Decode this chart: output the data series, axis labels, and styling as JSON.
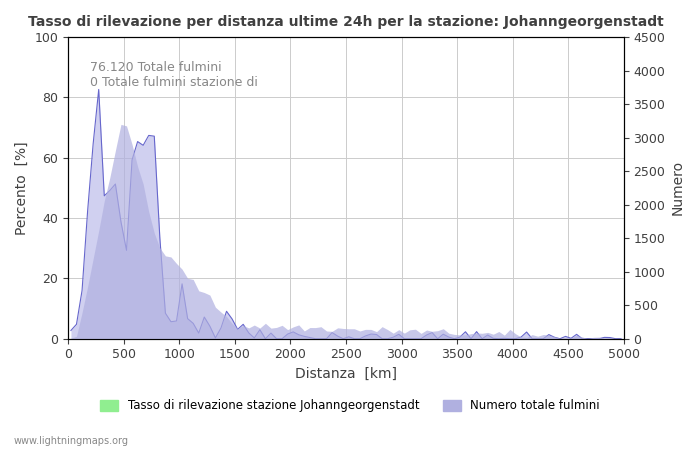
{
  "title": "Tasso di rilevazione per distanza ultime 24h per la stazione: Johanngeorgenstadt",
  "xlabel": "Distanza  [km]",
  "ylabel_left": "Percento  [%]",
  "ylabel_right": "Numero",
  "annotation_lines": [
    "76.120 Totale fulmini",
    "0 Totale fulmini stazione di"
  ],
  "legend_labels": [
    "Tasso di rilevazione stazione Johanngeorgenstadt",
    "Numero totale fulmini"
  ],
  "legend_colors": [
    "#90ee90",
    "#b0b0e0"
  ],
  "watermark": "www.lightningmaps.org",
  "xlim": [
    0,
    5000
  ],
  "ylim_left": [
    0,
    100
  ],
  "ylim_right": [
    0,
    4500
  ],
  "line_color": "#6666cc",
  "fill_color": "#d0d0f0",
  "background_color": "#ffffff",
  "grid_color": "#cccccc",
  "title_color": "#404040",
  "label_color": "#404040",
  "tick_color": "#404040"
}
